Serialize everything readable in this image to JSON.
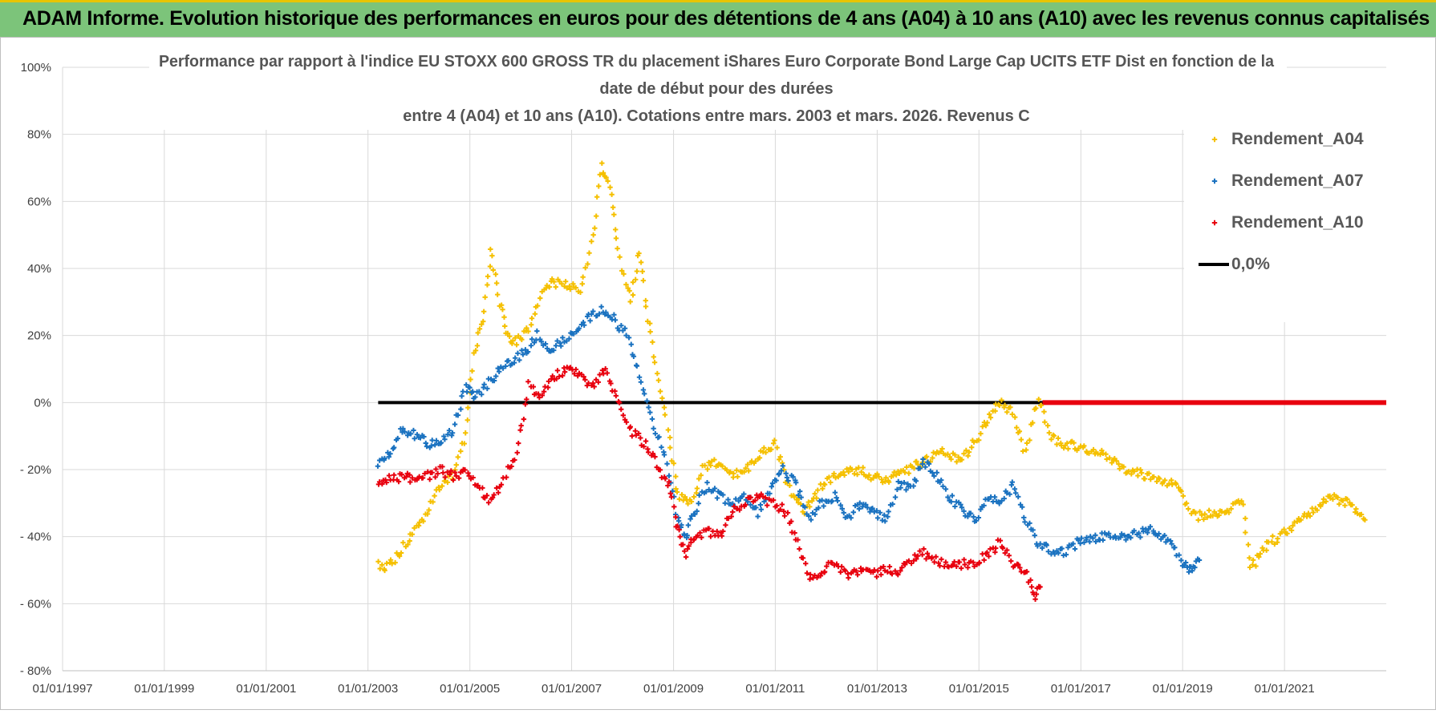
{
  "header": {
    "banner": "ADAM Informe. Evolution historique des performances en euros pour des détentions de 4 ans (A04) à 10 ans (A10) avec les revenus connus capitalisés"
  },
  "colors": {
    "banner_bg": "#7cc47a",
    "banner_accent": "#e8c400",
    "A04": "#f5c000",
    "A07": "#1a72c0",
    "A10": "#e8000e",
    "zero": "#000000",
    "grid": "#d9d9d9"
  },
  "chart_data": {
    "type": "scatter",
    "title_lines": [
      "Performance par rapport à l'indice EU STOXX 600 GROSS TR  du placement iShares Euro Corporate Bond Large Cap UCITS ETF Dist en fonction de la",
      "date de début pour des durées",
      "entre 4 (A04) et 10 ans (A10). Cotations entre mars. 2003 et mars. 2026. Revenus C"
    ],
    "ylim": [
      -80,
      100
    ],
    "yticks": [
      {
        "value": 100,
        "label": "100%"
      },
      {
        "value": 80,
        "label": "80%"
      },
      {
        "value": 60,
        "label": "60%"
      },
      {
        "value": 40,
        "label": "40%"
      },
      {
        "value": 20,
        "label": "20%"
      },
      {
        "value": 0,
        "label": "0%"
      },
      {
        "value": -20,
        "label": "- 20%"
      },
      {
        "value": -40,
        "label": "- 40%"
      },
      {
        "value": -60,
        "label": "- 60%"
      },
      {
        "value": -80,
        "label": "- 80%"
      }
    ],
    "xlim": [
      "1997-01-01",
      "2023-01-01"
    ],
    "xticks": [
      {
        "date": "1997-01-01",
        "label": "01/01/1997"
      },
      {
        "date": "1999-01-01",
        "label": "01/01/1999"
      },
      {
        "date": "2001-01-01",
        "label": "01/01/2001"
      },
      {
        "date": "2003-01-01",
        "label": "01/01/2003"
      },
      {
        "date": "2005-01-01",
        "label": "01/01/2005"
      },
      {
        "date": "2007-01-01",
        "label": "01/01/2007"
      },
      {
        "date": "2009-01-01",
        "label": "01/01/2009"
      },
      {
        "date": "2011-01-01",
        "label": "01/01/2011"
      },
      {
        "date": "2013-01-01",
        "label": "01/01/2013"
      },
      {
        "date": "2015-01-01",
        "label": "01/01/2015"
      },
      {
        "date": "2017-01-01",
        "label": "01/01/2017"
      },
      {
        "date": "2019-01-01",
        "label": "01/01/2019"
      },
      {
        "date": "2021-01-01",
        "label": "01/01/2021"
      }
    ],
    "grid": true,
    "legend_position": "top-right",
    "series": [
      {
        "name": "Rendement_A04",
        "key": "A04",
        "marker": "plus",
        "points": [
          [
            "2003-03-15",
            -48
          ],
          [
            "2003-06-01",
            -49
          ],
          [
            "2003-09-01",
            -44
          ],
          [
            "2003-12-01",
            -38
          ],
          [
            "2004-03-01",
            -33
          ],
          [
            "2004-06-01",
            -25
          ],
          [
            "2004-09-01",
            -22
          ],
          [
            "2004-12-01",
            -10
          ],
          [
            "2005-02-01",
            15
          ],
          [
            "2005-04-01",
            25
          ],
          [
            "2005-06-01",
            45
          ],
          [
            "2005-08-01",
            30
          ],
          [
            "2005-10-01",
            20
          ],
          [
            "2005-12-01",
            18
          ],
          [
            "2006-03-01",
            22
          ],
          [
            "2006-06-01",
            32
          ],
          [
            "2006-09-01",
            36
          ],
          [
            "2006-12-01",
            35
          ],
          [
            "2007-03-01",
            33
          ],
          [
            "2007-06-01",
            50
          ],
          [
            "2007-08-01",
            70
          ],
          [
            "2007-10-01",
            65
          ],
          [
            "2007-12-01",
            45
          ],
          [
            "2008-03-01",
            30
          ],
          [
            "2008-05-01",
            45
          ],
          [
            "2008-07-01",
            25
          ],
          [
            "2008-09-01",
            10
          ],
          [
            "2008-12-01",
            -10
          ],
          [
            "2009-02-01",
            -28
          ],
          [
            "2009-05-01",
            -30
          ],
          [
            "2009-08-01",
            -20
          ],
          [
            "2009-11-01",
            -18
          ],
          [
            "2010-02-01",
            -22
          ],
          [
            "2010-06-01",
            -20
          ],
          [
            "2010-10-01",
            -15
          ],
          [
            "2011-01-01",
            -12
          ],
          [
            "2011-04-01",
            -25
          ],
          [
            "2011-08-01",
            -32
          ],
          [
            "2011-12-01",
            -25
          ],
          [
            "2012-03-01",
            -22
          ],
          [
            "2012-08-01",
            -20
          ],
          [
            "2012-12-01",
            -22
          ],
          [
            "2013-04-01",
            -23
          ],
          [
            "2013-08-01",
            -20
          ],
          [
            "2013-12-01",
            -18
          ],
          [
            "2014-04-01",
            -15
          ],
          [
            "2014-09-01",
            -17
          ],
          [
            "2014-12-01",
            -12
          ],
          [
            "2015-03-01",
            -5
          ],
          [
            "2015-06-01",
            0
          ],
          [
            "2015-09-01",
            -3
          ],
          [
            "2015-12-01",
            -15
          ],
          [
            "2016-03-01",
            2
          ],
          [
            "2016-06-01",
            -10
          ],
          [
            "2016-09-01",
            -13
          ],
          [
            "2017-01-01",
            -13
          ],
          [
            "2017-06-01",
            -15
          ],
          [
            "2017-12-01",
            -20
          ],
          [
            "2018-06-01",
            -22
          ],
          [
            "2018-12-01",
            -25
          ],
          [
            "2019-03-01",
            -34
          ],
          [
            "2019-08-01",
            -33
          ],
          [
            "2019-12-01",
            -32
          ],
          [
            "2020-03-01",
            -28
          ],
          [
            "2020-05-01",
            -50
          ],
          [
            "2020-09-01",
            -42
          ],
          [
            "2020-12-01",
            -40
          ],
          [
            "2021-03-01",
            -37
          ],
          [
            "2021-08-01",
            -32
          ],
          [
            "2021-12-01",
            -28
          ],
          [
            "2022-04-01",
            -30
          ],
          [
            "2022-08-01",
            -35
          ]
        ]
      },
      {
        "name": "Rendement_A07",
        "key": "A07",
        "marker": "plus",
        "points": [
          [
            "2003-03-15",
            -18
          ],
          [
            "2003-06-01",
            -15
          ],
          [
            "2003-09-01",
            -8
          ],
          [
            "2003-12-01",
            -10
          ],
          [
            "2004-03-01",
            -12
          ],
          [
            "2004-06-01",
            -12
          ],
          [
            "2004-09-01",
            -8
          ],
          [
            "2004-12-01",
            5
          ],
          [
            "2005-02-01",
            2
          ],
          [
            "2005-05-01",
            5
          ],
          [
            "2005-08-01",
            10
          ],
          [
            "2005-11-01",
            12
          ],
          [
            "2006-02-01",
            15
          ],
          [
            "2006-05-01",
            20
          ],
          [
            "2006-08-01",
            16
          ],
          [
            "2006-11-01",
            18
          ],
          [
            "2007-02-01",
            22
          ],
          [
            "2007-05-01",
            25
          ],
          [
            "2007-08-01",
            28
          ],
          [
            "2007-11-01",
            25
          ],
          [
            "2008-02-01",
            20
          ],
          [
            "2008-05-01",
            8
          ],
          [
            "2008-08-01",
            -5
          ],
          [
            "2008-11-01",
            -15
          ],
          [
            "2009-02-01",
            -35
          ],
          [
            "2009-04-01",
            -40
          ],
          [
            "2009-06-01",
            -32
          ],
          [
            "2009-09-01",
            -25
          ],
          [
            "2009-12-01",
            -28
          ],
          [
            "2010-03-01",
            -30
          ],
          [
            "2010-06-01",
            -28
          ],
          [
            "2010-09-01",
            -33
          ],
          [
            "2010-12-01",
            -25
          ],
          [
            "2011-03-01",
            -20
          ],
          [
            "2011-06-01",
            -25
          ],
          [
            "2011-09-01",
            -35
          ],
          [
            "2011-12-01",
            -30
          ],
          [
            "2012-03-01",
            -28
          ],
          [
            "2012-06-01",
            -35
          ],
          [
            "2012-09-01",
            -30
          ],
          [
            "2012-12-01",
            -32
          ],
          [
            "2013-03-01",
            -35
          ],
          [
            "2013-06-01",
            -25
          ],
          [
            "2013-09-01",
            -25
          ],
          [
            "2013-12-01",
            -18
          ],
          [
            "2014-03-01",
            -22
          ],
          [
            "2014-06-01",
            -28
          ],
          [
            "2014-09-01",
            -32
          ],
          [
            "2014-12-01",
            -35
          ],
          [
            "2015-03-01",
            -28
          ],
          [
            "2015-06-01",
            -30
          ],
          [
            "2015-09-01",
            -25
          ],
          [
            "2015-12-01",
            -35
          ],
          [
            "2016-03-01",
            -42
          ],
          [
            "2016-06-01",
            -44
          ],
          [
            "2016-09-01",
            -45
          ],
          [
            "2016-12-01",
            -42
          ],
          [
            "2017-06-01",
            -40
          ],
          [
            "2017-12-01",
            -40
          ],
          [
            "2018-06-01",
            -38
          ],
          [
            "2018-10-01",
            -42
          ],
          [
            "2019-01-01",
            -48
          ],
          [
            "2019-03-01",
            -50
          ],
          [
            "2019-05-01",
            -47
          ]
        ]
      },
      {
        "name": "Rendement_A10",
        "key": "A10",
        "marker": "plus",
        "points": [
          [
            "2003-03-15",
            -25
          ],
          [
            "2003-06-01",
            -23
          ],
          [
            "2003-09-01",
            -22
          ],
          [
            "2003-12-01",
            -23
          ],
          [
            "2004-03-01",
            -22
          ],
          [
            "2004-06-01",
            -20
          ],
          [
            "2004-09-01",
            -22
          ],
          [
            "2004-12-01",
            -20
          ],
          [
            "2005-03-01",
            -25
          ],
          [
            "2005-06-01",
            -30
          ],
          [
            "2005-09-01",
            -22
          ],
          [
            "2005-12-01",
            -15
          ],
          [
            "2006-03-01",
            5
          ],
          [
            "2006-06-01",
            2
          ],
          [
            "2006-09-01",
            8
          ],
          [
            "2006-12-01",
            10
          ],
          [
            "2007-03-01",
            8
          ],
          [
            "2007-06-01",
            5
          ],
          [
            "2007-09-01",
            10
          ],
          [
            "2007-12-01",
            0
          ],
          [
            "2008-03-01",
            -8
          ],
          [
            "2008-06-01",
            -12
          ],
          [
            "2008-09-01",
            -18
          ],
          [
            "2008-12-01",
            -25
          ],
          [
            "2009-02-01",
            -38
          ],
          [
            "2009-04-01",
            -45
          ],
          [
            "2009-06-01",
            -40
          ],
          [
            "2009-09-01",
            -38
          ],
          [
            "2009-12-01",
            -40
          ],
          [
            "2010-03-01",
            -32
          ],
          [
            "2010-06-01",
            -30
          ],
          [
            "2010-09-01",
            -28
          ],
          [
            "2010-12-01",
            -30
          ],
          [
            "2011-03-01",
            -32
          ],
          [
            "2011-06-01",
            -40
          ],
          [
            "2011-09-01",
            -52
          ],
          [
            "2011-12-01",
            -50
          ],
          [
            "2012-03-01",
            -48
          ],
          [
            "2012-06-01",
            -52
          ],
          [
            "2012-09-01",
            -50
          ],
          [
            "2012-12-01",
            -51
          ],
          [
            "2013-03-01",
            -50
          ],
          [
            "2013-06-01",
            -50
          ],
          [
            "2013-09-01",
            -47
          ],
          [
            "2013-12-01",
            -45
          ],
          [
            "2014-03-01",
            -47
          ],
          [
            "2014-06-01",
            -48
          ],
          [
            "2014-09-01",
            -48
          ],
          [
            "2014-12-01",
            -48
          ],
          [
            "2015-03-01",
            -45
          ],
          [
            "2015-06-01",
            -42
          ],
          [
            "2015-09-01",
            -48
          ],
          [
            "2015-12-01",
            -50
          ],
          [
            "2016-02-01",
            -58
          ],
          [
            "2016-03-15",
            -55
          ]
        ]
      },
      {
        "name": "0,0%",
        "key": "zero",
        "marker": "line",
        "points": [
          [
            "2003-03-15",
            0
          ],
          [
            "2023-01-01",
            0
          ]
        ]
      }
    ],
    "a10_zero_band": {
      "from": "2016-04-01",
      "to": "2023-01-01",
      "value": 0
    }
  }
}
